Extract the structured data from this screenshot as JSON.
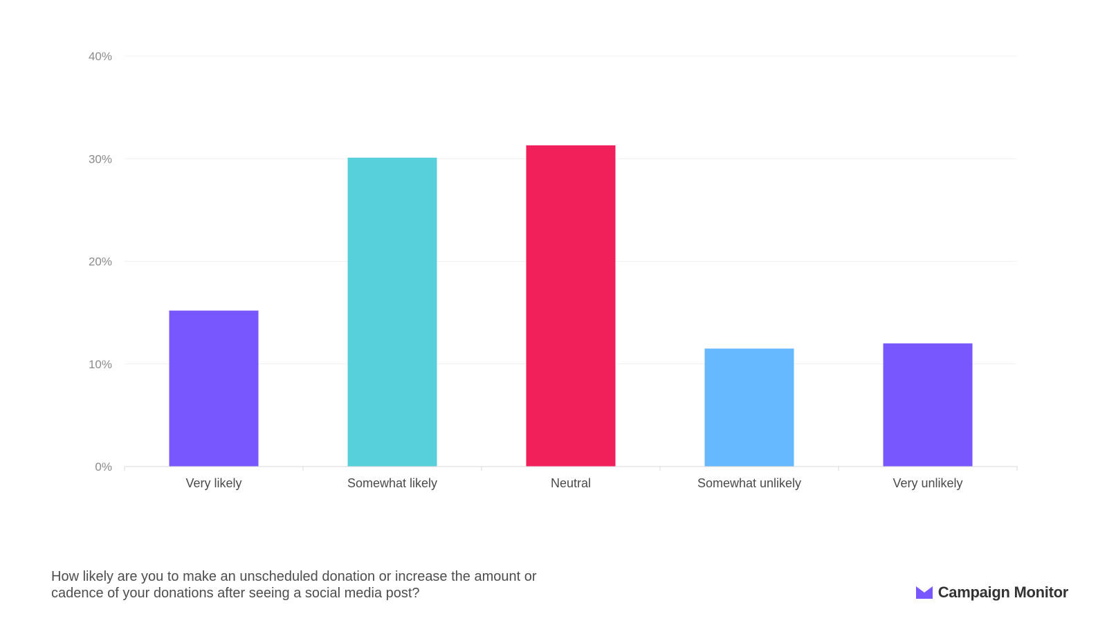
{
  "chart_data": {
    "type": "bar",
    "categories": [
      "Very likely",
      "Somewhat likely",
      "Neutral",
      "Somewhat unlikely",
      "Very unlikely"
    ],
    "values": [
      15.2,
      30.1,
      31.3,
      11.5,
      12.0
    ],
    "bar_colors": [
      "#7857ff",
      "#57d0dc",
      "#f2205a",
      "#66b8ff",
      "#7857ff"
    ],
    "ylim": [
      0,
      40
    ],
    "yticks": [
      0,
      10,
      20,
      30,
      40
    ],
    "ytick_labels": [
      "0%",
      "10%",
      "20%",
      "30%",
      "40%"
    ],
    "grid": true,
    "legend": "none"
  },
  "caption": "How likely are you to make an unscheduled donation or increase the amount or cadence of your donations after seeing a social media post?",
  "brand": {
    "name": "Campaign Monitor",
    "icon": "envelope-logo-icon",
    "color": "#7857ff"
  }
}
